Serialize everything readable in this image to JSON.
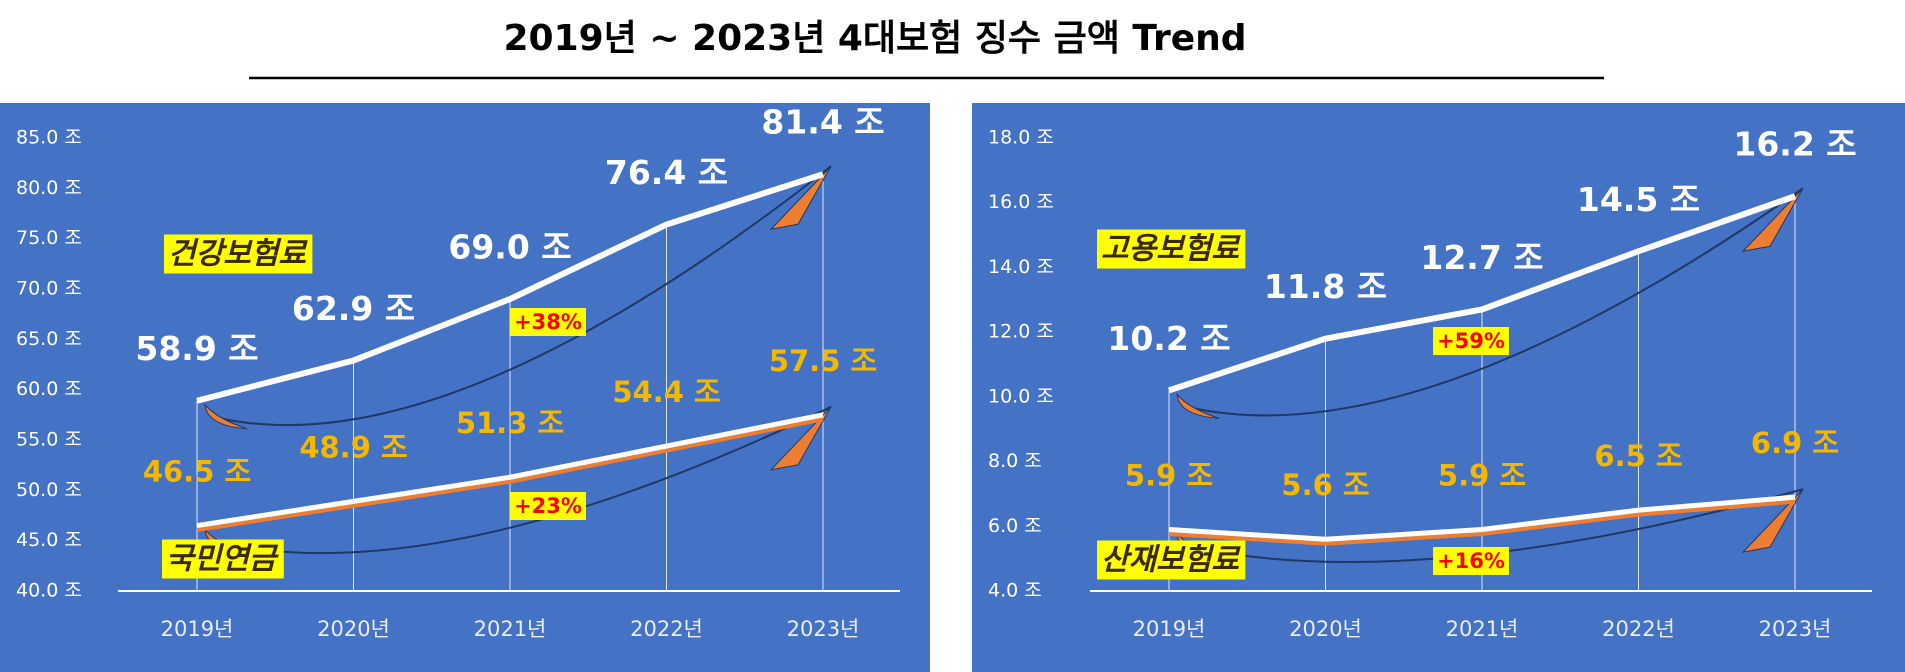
{
  "title": "2019년 ~ 2023년 4대보험 징수 금액 Trend",
  "chart_data": [
    {
      "type": "line",
      "categories": [
        "2019년",
        "2020년",
        "2021년",
        "2022년",
        "2023년"
      ],
      "ylim": [
        40,
        85
      ],
      "yticks": [
        {
          "value": 40,
          "label": "40.0 조"
        },
        {
          "value": 45,
          "label": "45.0 조"
        },
        {
          "value": 50,
          "label": "50.0 조"
        },
        {
          "value": 55,
          "label": "55.0 조"
        },
        {
          "value": 60,
          "label": "60.0 조"
        },
        {
          "value": 65,
          "label": "65.0 조"
        },
        {
          "value": 70,
          "label": "70.0 조"
        },
        {
          "value": 75,
          "label": "75.0 조"
        },
        {
          "value": 80,
          "label": "80.0 조"
        },
        {
          "value": 85,
          "label": "85.0 조"
        }
      ],
      "series": [
        {
          "name": "건강보험료",
          "color": "#ffffff",
          "values": [
            58.9,
            62.9,
            69.0,
            76.4,
            81.4
          ],
          "value_labels": [
            "58.9 조",
            "62.9 조",
            "69.0 조",
            "76.4 조",
            "81.4 조"
          ]
        },
        {
          "name": "국민연금",
          "color": "#ed7d31",
          "values": [
            46.5,
            48.9,
            51.3,
            54.4,
            57.5
          ],
          "value_labels": [
            "46.5 조",
            "48.9 조",
            "51.3 조",
            "54.4 조",
            "57.5 조"
          ]
        }
      ],
      "annotations": [
        "+38%",
        "+23%"
      ]
    },
    {
      "type": "line",
      "categories": [
        "2019년",
        "2020년",
        "2021년",
        "2022년",
        "2023년"
      ],
      "ylim": [
        4,
        18
      ],
      "yticks": [
        {
          "value": 4,
          "label": "4.0 조"
        },
        {
          "value": 6,
          "label": "6.0 조"
        },
        {
          "value": 8,
          "label": "8.0 조"
        },
        {
          "value": 10,
          "label": "10.0 조"
        },
        {
          "value": 12,
          "label": "12.0 조"
        },
        {
          "value": 14,
          "label": "14.0 조"
        },
        {
          "value": 16,
          "label": "16.0 조"
        },
        {
          "value": 18,
          "label": "18.0 조"
        }
      ],
      "series": [
        {
          "name": "고용보험료",
          "color": "#ffffff",
          "values": [
            10.2,
            11.8,
            12.7,
            14.5,
            16.2
          ],
          "value_labels": [
            "10.2 조",
            "11.8 조",
            "12.7 조",
            "14.5 조",
            "16.2 조"
          ]
        },
        {
          "name": "산재보험료",
          "color": "#ed7d31",
          "values": [
            5.9,
            5.6,
            5.9,
            6.5,
            6.9
          ],
          "value_labels": [
            "5.9 조",
            "5.6 조",
            "5.9 조",
            "6.5 조",
            "6.9 조"
          ]
        }
      ],
      "annotations": [
        "+59%",
        "+16%"
      ]
    }
  ]
}
